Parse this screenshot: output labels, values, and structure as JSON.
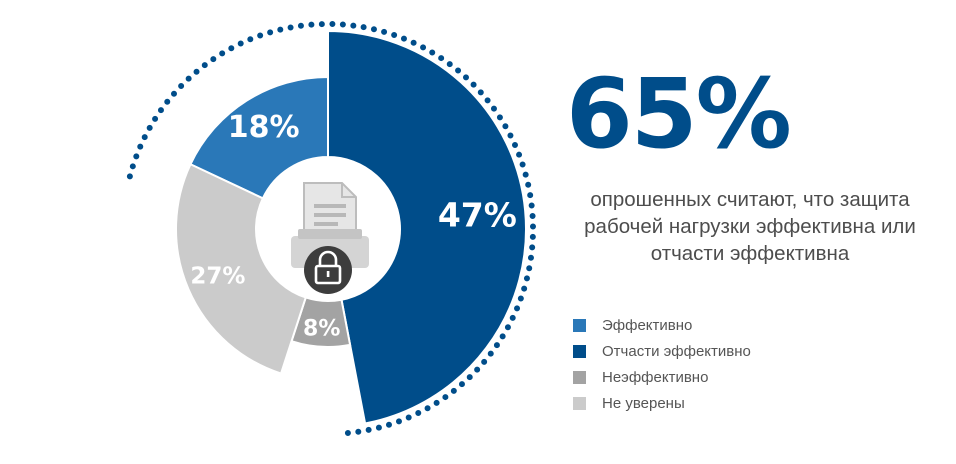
{
  "chart_data": {
    "type": "pie",
    "style": "donut",
    "slices": [
      {
        "label": "Эффективно",
        "value": 18,
        "value_label": "18%",
        "color": "#2a78b8"
      },
      {
        "label": "Отчасти эффективно",
        "value": 47,
        "value_label": "47%",
        "color": "#004d8a"
      },
      {
        "label": "Неэффективно",
        "value": 8,
        "value_label": "8%",
        "color": "#a3a3a3"
      },
      {
        "label": "Не уверены",
        "value": 27,
        "value_label": "27%",
        "color": "#cbcbcb"
      }
    ],
    "center_icon": "document-printer-lock-icon",
    "highlight_ring_color": "#004d8a"
  },
  "headline": {
    "big_number": "65%",
    "text": "опрошенных считают, что защита рабочей нагрузки эффективна или отчасти эффективна"
  },
  "legend": [
    {
      "label": "Эффективно",
      "color": "#2a78b8"
    },
    {
      "label": "Отчасти эффективно",
      "color": "#004d8a"
    },
    {
      "label": "Неэффективно",
      "color": "#a3a3a3"
    },
    {
      "label": "Не уверены",
      "color": "#cbcbcb"
    }
  ]
}
